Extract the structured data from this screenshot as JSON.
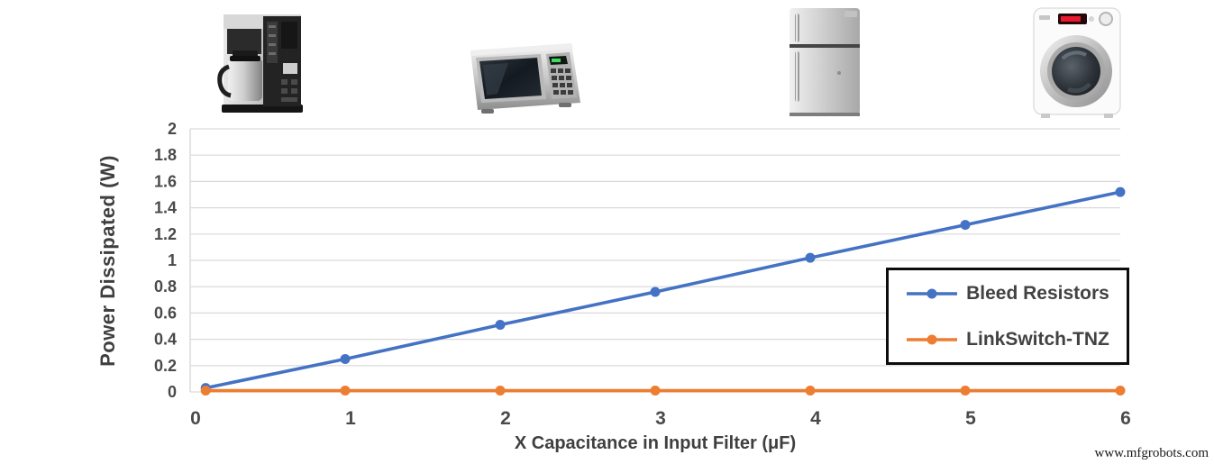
{
  "page": {
    "watermark": "www.mfgrobots.com"
  },
  "appliances": [
    {
      "icon": "coffee-maker-image"
    },
    {
      "icon": "microwave-oven-image"
    },
    {
      "icon": "refrigerator-image"
    },
    {
      "icon": "washing-machine-image"
    }
  ],
  "chart_data": {
    "type": "line",
    "title": "",
    "xlabel": "X Capacitance in Input Filter (μF)",
    "ylabel": "Power Dissipated (W)",
    "x": [
      0.1,
      1,
      2,
      3,
      4,
      5,
      6
    ],
    "series": [
      {
        "name": "Bleed Resistors",
        "color": "#4472C4",
        "values": [
          0.03,
          0.25,
          0.51,
          0.76,
          1.02,
          1.27,
          1.52
        ]
      },
      {
        "name": "LinkSwitch-TNZ",
        "color": "#ED7D31",
        "values": [
          0.01,
          0.01,
          0.01,
          0.01,
          0.01,
          0.01,
          0.01
        ]
      }
    ],
    "xlim": [
      0,
      6
    ],
    "ylim": [
      0,
      2
    ],
    "x_ticks": [
      0,
      1,
      2,
      3,
      4,
      5,
      6
    ],
    "x_tick_labels": [
      "0",
      "1",
      "2",
      "3",
      "4",
      "5",
      "6"
    ],
    "y_ticks": [
      0,
      0.2,
      0.4,
      0.6,
      0.8,
      1,
      1.2,
      1.4,
      1.6,
      1.8,
      2
    ],
    "y_tick_labels": [
      "0",
      "0.2",
      "0.4",
      "0.6",
      "0.8",
      "1",
      "1.2",
      "1.4",
      "1.6",
      "1.8",
      "2"
    ],
    "grid": "horizontal",
    "grid_color": "#D9D9D9",
    "legend_position": "inside-right"
  }
}
